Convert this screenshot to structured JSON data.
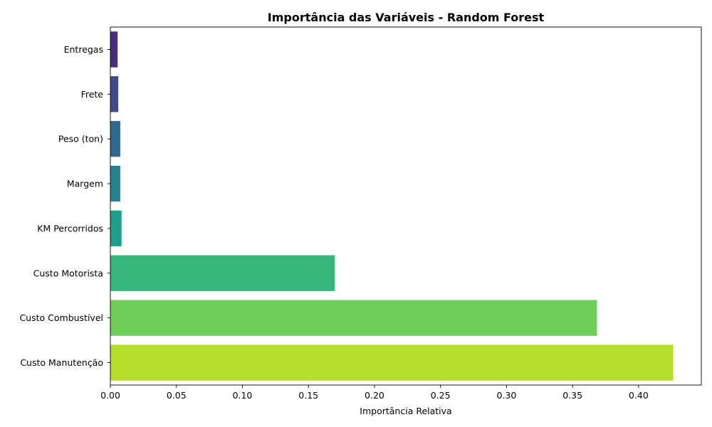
{
  "chart_data": {
    "type": "bar",
    "orientation": "horizontal",
    "title": "Importância das Variáveis - Random Forest",
    "xlabel": "Importância Relativa",
    "ylabel": "",
    "xlim": [
      0,
      0.4475
    ],
    "x_ticks": [
      "0.00",
      "0.05",
      "0.10",
      "0.15",
      "0.20",
      "0.25",
      "0.30",
      "0.35",
      "0.40"
    ],
    "grid": false,
    "categories": [
      "Entregas",
      "Frete",
      "Peso (ton)",
      "Margem",
      "KM Percorridos",
      "Custo Motorista",
      "Custo Combustível",
      "Custo Manutenção"
    ],
    "values": [
      0.0055,
      0.006,
      0.0075,
      0.0075,
      0.0085,
      0.17,
      0.3685,
      0.4262
    ],
    "colors": [
      "#472d7b",
      "#3e4a89",
      "#31688e",
      "#26828e",
      "#1f9e89",
      "#35b779",
      "#6ece58",
      "#b5de2b"
    ],
    "axes_color": "#000000"
  }
}
